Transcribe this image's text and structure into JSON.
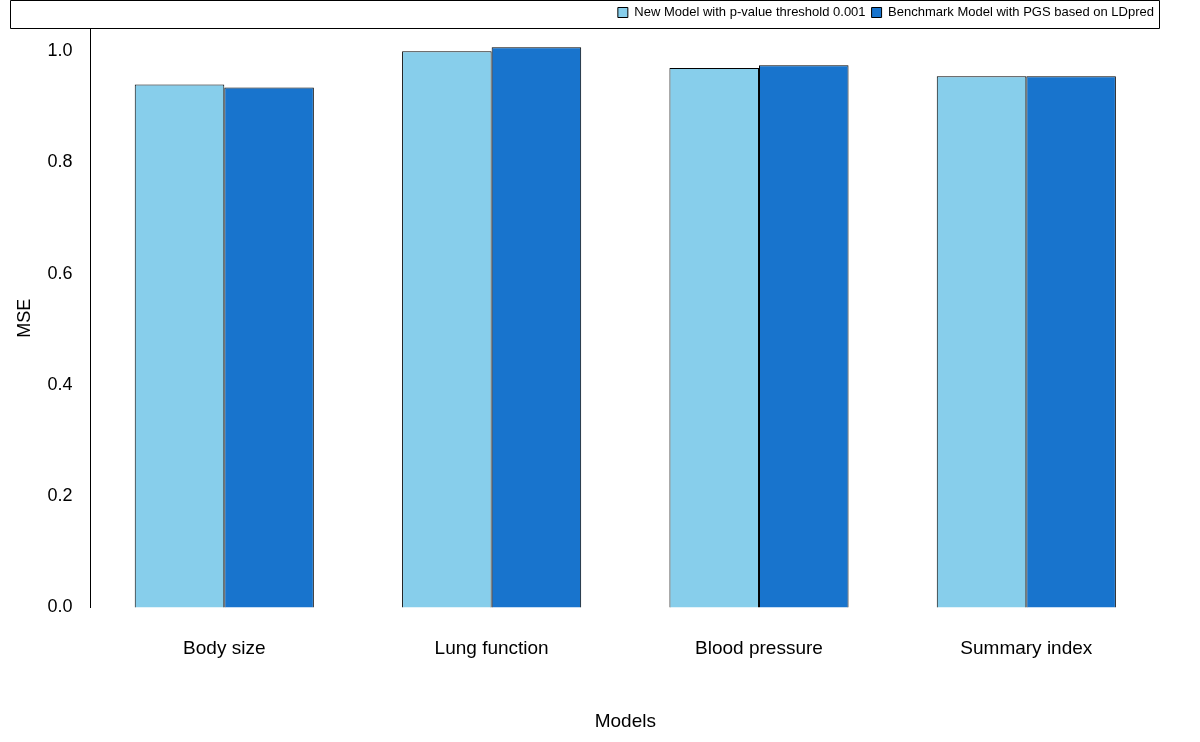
{
  "chart_data": {
    "type": "bar",
    "xlabel": "Models",
    "ylabel": "MSE",
    "categories": [
      "Body size",
      "Lung function",
      "Blood pressure",
      "Summary index"
    ],
    "series": [
      {
        "name": "New Model with p-value threshold 0.001",
        "color": "#87ceeb",
        "values": [
          0.94,
          1.0,
          0.97,
          0.955
        ]
      },
      {
        "name": "Benchmark Model with PGS based on LDpred",
        "color": "#1874cd",
        "values": [
          0.935,
          1.007,
          0.975,
          0.955
        ]
      }
    ],
    "ylim": [
      0,
      1.04
    ],
    "yticks": [
      {
        "value": 0,
        "label": "0.0"
      },
      {
        "value": 0.2,
        "label": "0.2"
      },
      {
        "value": 0.4,
        "label": "0.4"
      },
      {
        "value": 0.6,
        "label": "0.6"
      },
      {
        "value": 0.8,
        "label": "0.8"
      },
      {
        "value": 1,
        "label": "1.0"
      }
    ],
    "grid": false,
    "legend": "top right"
  }
}
